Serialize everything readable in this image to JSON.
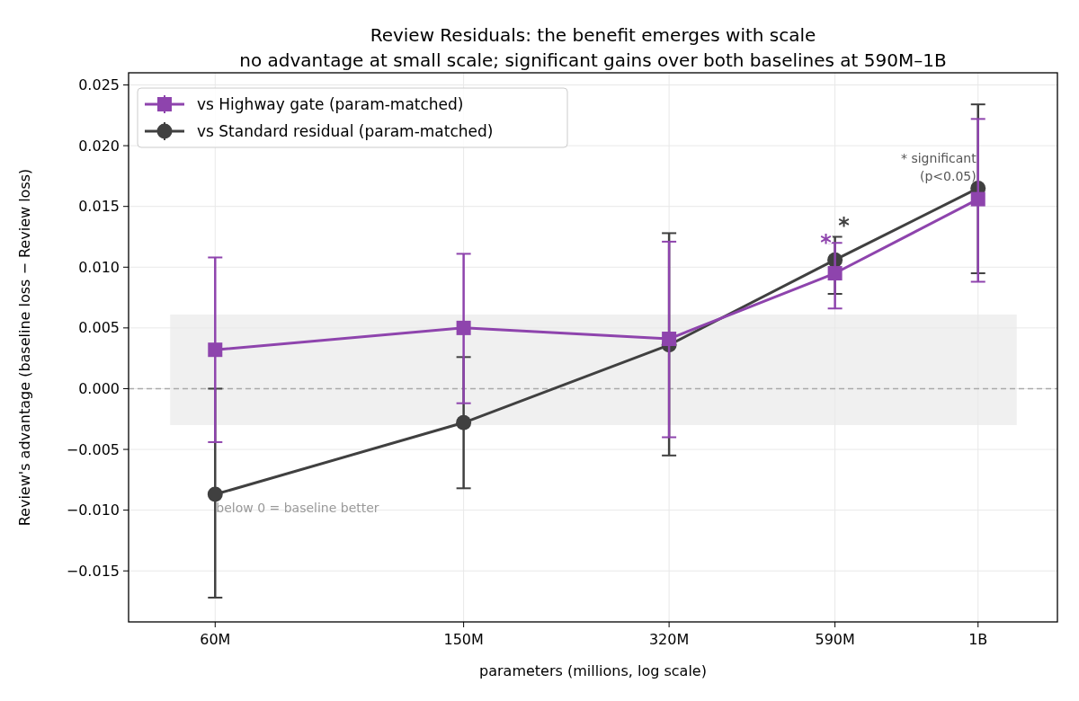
{
  "chart_data": {
    "type": "line",
    "title": "Review Residuals: the benefit emerges with scale",
    "subtitle": "no advantage at small scale; significant gains over both baselines at 590M–1B",
    "xlabel": "parameters (millions, log scale)",
    "ylabel": "Review's advantage  (baseline loss − Review loss)",
    "log": "x",
    "x": [
      60000000,
      150000000,
      320000000,
      590000000,
      1000000000
    ],
    "xlim": [
      43600000,
      1340000000
    ],
    "xticks": [
      {
        "value": 60000000,
        "label": "60M"
      },
      {
        "value": 150000000,
        "label": "150M"
      },
      {
        "value": 320000000,
        "label": "320M"
      },
      {
        "value": 590000000,
        "label": "590M"
      },
      {
        "value": 1000000000,
        "label": "1B"
      }
    ],
    "ylim": [
      -0.0192,
      0.026
    ],
    "yticks": [
      {
        "value": -0.015,
        "label": "−0.015"
      },
      {
        "value": -0.01,
        "label": "−0.010"
      },
      {
        "value": -0.005,
        "label": "−0.005"
      },
      {
        "value": 0,
        "label": "0.000"
      },
      {
        "value": 0.005,
        "label": "0.005"
      },
      {
        "value": 0.01,
        "label": "0.010"
      },
      {
        "value": 0.015,
        "label": "0.015"
      },
      {
        "value": 0.02,
        "label": "0.020"
      },
      {
        "value": 0.025,
        "label": "0.025"
      }
    ],
    "grid": true,
    "legend": "top left",
    "series": [
      {
        "name": "vs Highway gate (param-matched)",
        "color": "#8e44ad",
        "marker": "square",
        "values": [
          0.0032,
          0.005,
          0.0041,
          0.0095,
          0.0156
        ],
        "value_labels": [
          null,
          null,
          null,
          "*",
          null
        ],
        "errors": [
          [
            -0.0044,
            0.0108
          ],
          [
            -0.0012,
            0.0111
          ],
          [
            -0.004,
            0.0121
          ],
          [
            0.0066,
            0.012
          ],
          [
            0.0088,
            0.0222
          ]
        ]
      },
      {
        "name": "vs Standard residual (param-matched)",
        "color": "#404040",
        "marker": "circle",
        "values": [
          -0.0087,
          -0.0028,
          0.0036,
          0.0106,
          0.0165
        ],
        "value_labels": [
          null,
          null,
          null,
          "*",
          null
        ],
        "errors": [
          [
            -0.0172,
            0.0
          ],
          [
            -0.0082,
            0.0026
          ],
          [
            -0.0055,
            0.0128
          ],
          [
            0.0078,
            0.0125
          ],
          [
            0.0095,
            0.0234
          ]
        ]
      }
    ],
    "ref_lines": [
      {
        "axis": "y",
        "value": 0,
        "color": "#aaaaaa",
        "line_style": "dashed"
      }
    ],
    "bands": [
      {
        "axis": "y",
        "from": -0.003,
        "to": 0.0061,
        "color": "#f0f0f0"
      }
    ],
    "annotations": [
      "below 0 = baseline better",
      "* significant\n(p<0.05)"
    ]
  }
}
